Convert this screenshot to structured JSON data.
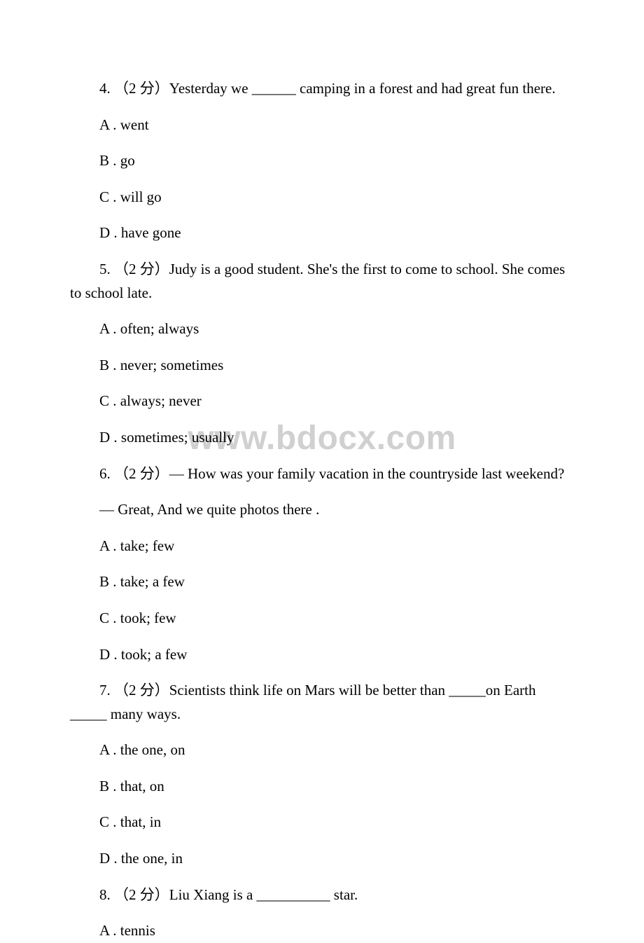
{
  "watermark": "www.bdocx.com",
  "questions": [
    {
      "number": "4",
      "points": "（2 分）",
      "text": "Yesterday we ______ camping in a forest and had great fun there.",
      "options": {
        "A": "A . went",
        "B": "B . go",
        "C": "C . will go",
        "D": "D . have gone"
      }
    },
    {
      "number": "5",
      "points": "（2 分）",
      "text": "Judy is a good student. She's     the first to come to school. She     comes to school late.",
      "options": {
        "A": "A . often; always",
        "B": "B . never; sometimes",
        "C": "C . always; never",
        "D": "D . sometimes; usually"
      }
    },
    {
      "number": "6",
      "points": "（2 分）",
      "text": "— How was your family vacation in the countryside last weekend?",
      "text2": "— Great, And we        quite          photos there .",
      "options": {
        "A": "A . take; few",
        "B": "B . take; a few",
        "C": "C . took; few",
        "D": "D . took; a few"
      }
    },
    {
      "number": "7",
      "points": "（2 分）",
      "text": "Scientists think life on Mars will be better than _____on Earth _____ many ways.",
      "options": {
        "A": "A . the one, on",
        "B": "B . that, on",
        "C": "C . that, in",
        "D": "D . the one, in"
      }
    },
    {
      "number": "8",
      "points": "（2 分）",
      "text": "Liu Xiang is a __________ star.",
      "options": {
        "A": "A . tennis"
      }
    }
  ]
}
